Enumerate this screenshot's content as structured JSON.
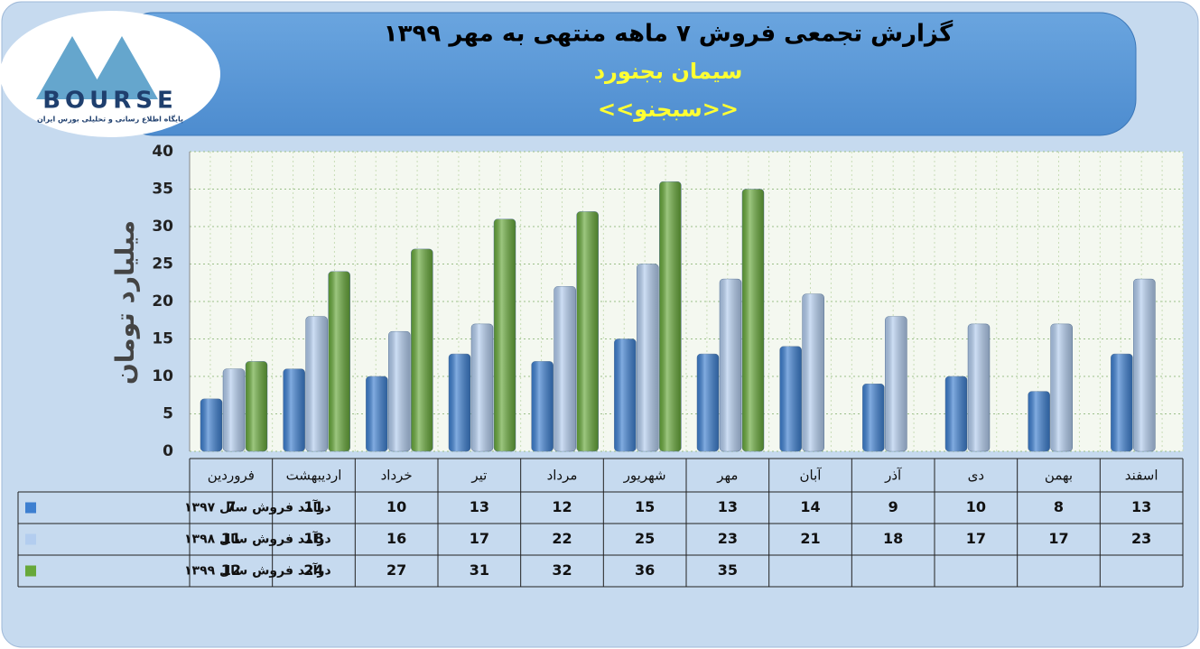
{
  "logo": {
    "brand": "BOURSE",
    "tagline": "پایگاه اطلاع رسانی و تحلیلی بورس ایران"
  },
  "chart_data": {
    "type": "bar",
    "title": "گزارش تجمعی فروش ۷ ماهه منتهی به مهر ۱۳۹۹",
    "subtitle": "سیمان بجنورد",
    "symbol": "<<سبجنو>>",
    "y_label": "میلیارد تومان",
    "categories": [
      "فروردین",
      "اردیبهشت",
      "خرداد",
      "تیر",
      "مرداد",
      "شهریور",
      "مهر",
      "آبان",
      "آذر",
      "دی",
      "بهمن",
      "اسفند"
    ],
    "series": [
      {
        "name": "درآمد فروش سال ۱۳۹۷",
        "color": "#3d7fd0",
        "values": [
          7,
          11,
          10,
          13,
          12,
          15,
          13,
          14,
          9,
          10,
          8,
          13
        ]
      },
      {
        "name": "درآمد فروش سال ۱۳۹۸",
        "color": "#b3cdef",
        "values": [
          11,
          18,
          16,
          17,
          22,
          25,
          23,
          21,
          18,
          17,
          17,
          23
        ]
      },
      {
        "name": "درآمد فروش سال ۱۳۹۹",
        "color": "#67a83a",
        "values": [
          12,
          24,
          27,
          31,
          32,
          36,
          35,
          null,
          null,
          null,
          null,
          null
        ]
      }
    ],
    "ylim": [
      0,
      40
    ],
    "yticks": [
      0,
      5,
      10,
      15,
      20,
      25,
      30,
      35,
      40
    ],
    "grid": true
  }
}
